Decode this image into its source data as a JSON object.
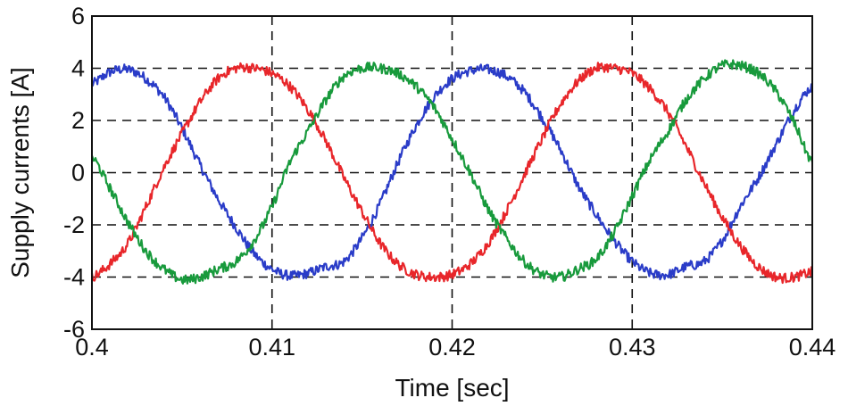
{
  "chart_data": {
    "type": "line",
    "title": "",
    "xlabel": "Time [sec]",
    "ylabel": "Supply currents [A]",
    "xlim": [
      0.4,
      0.44
    ],
    "ylim": [
      -6,
      6
    ],
    "xticks": [
      0.4,
      0.41,
      0.42,
      0.43,
      0.44
    ],
    "xtick_labels": [
      "0.4",
      "0.41",
      "0.42",
      "0.43",
      "0.44"
    ],
    "yticks": [
      -6,
      -4,
      -2,
      0,
      2,
      4,
      6
    ],
    "ytick_labels": [
      "-6",
      "-4",
      "-2",
      "0",
      "2",
      "4",
      "6"
    ],
    "grid": true,
    "grid_style": "dashed",
    "legend": false,
    "series": [
      {
        "color": "#2a3cc8",
        "x": [
          0.4,
          0.401,
          0.402,
          0.403,
          0.404,
          0.405,
          0.406,
          0.407,
          0.408,
          0.409,
          0.41,
          0.411,
          0.412,
          0.413,
          0.414,
          0.415,
          0.416,
          0.417,
          0.418,
          0.419,
          0.42,
          0.421,
          0.422,
          0.423,
          0.424,
          0.425,
          0.426,
          0.427,
          0.428,
          0.429,
          0.43,
          0.431,
          0.432,
          0.433,
          0.434,
          0.435,
          0.436,
          0.437,
          0.438,
          0.439,
          0.44
        ],
        "y": [
          3.4,
          3.85,
          3.95,
          3.6,
          2.9,
          1.7,
          0.3,
          -1.0,
          -2.1,
          -3.1,
          -3.7,
          -3.95,
          -3.85,
          -3.6,
          -3.4,
          -2.5,
          -1.2,
          0.4,
          1.8,
          2.9,
          3.6,
          3.9,
          3.95,
          3.7,
          3.1,
          2.1,
          0.9,
          -0.5,
          -1.6,
          -2.6,
          -3.4,
          -3.85,
          -3.9,
          -3.6,
          -3.4,
          -2.6,
          -1.3,
          -0.2,
          1.1,
          2.4,
          3.3
        ]
      },
      {
        "color": "#e8262a",
        "x": [
          0.4,
          0.401,
          0.402,
          0.403,
          0.404,
          0.405,
          0.406,
          0.407,
          0.408,
          0.409,
          0.41,
          0.411,
          0.412,
          0.413,
          0.414,
          0.415,
          0.416,
          0.417,
          0.418,
          0.419,
          0.42,
          0.421,
          0.422,
          0.423,
          0.424,
          0.425,
          0.426,
          0.427,
          0.428,
          0.429,
          0.43,
          0.431,
          0.432,
          0.433,
          0.434,
          0.435,
          0.436,
          0.437,
          0.438,
          0.439,
          0.44
        ],
        "y": [
          -4.0,
          -3.5,
          -2.7,
          -1.3,
          0.2,
          1.5,
          2.7,
          3.6,
          4.0,
          4.0,
          3.8,
          3.3,
          2.4,
          1.2,
          -0.2,
          -1.5,
          -2.7,
          -3.5,
          -3.9,
          -4.0,
          -3.9,
          -3.5,
          -2.7,
          -1.5,
          -0.1,
          1.3,
          2.6,
          3.5,
          4.0,
          4.0,
          3.8,
          3.2,
          2.3,
          1.0,
          -0.4,
          -1.7,
          -2.8,
          -3.6,
          -4.0,
          -4.0,
          -3.8
        ]
      },
      {
        "color": "#189a3c",
        "x": [
          0.4,
          0.401,
          0.402,
          0.403,
          0.404,
          0.405,
          0.406,
          0.407,
          0.408,
          0.409,
          0.41,
          0.411,
          0.412,
          0.413,
          0.414,
          0.415,
          0.416,
          0.417,
          0.418,
          0.419,
          0.42,
          0.421,
          0.422,
          0.423,
          0.424,
          0.425,
          0.426,
          0.427,
          0.428,
          0.429,
          0.43,
          0.431,
          0.432,
          0.433,
          0.434,
          0.435,
          0.436,
          0.437,
          0.438,
          0.439,
          0.44
        ],
        "y": [
          0.6,
          -0.6,
          -1.9,
          -3.0,
          -3.7,
          -4.1,
          -4.0,
          -3.7,
          -3.4,
          -2.6,
          -1.3,
          0.4,
          1.6,
          2.8,
          3.7,
          4.0,
          4.0,
          3.8,
          3.3,
          2.5,
          1.3,
          0.0,
          -1.4,
          -2.5,
          -3.4,
          -3.9,
          -4.0,
          -3.7,
          -3.3,
          -2.3,
          -0.9,
          0.5,
          1.6,
          2.8,
          3.6,
          4.1,
          4.1,
          3.8,
          3.1,
          1.9,
          0.4
        ]
      }
    ]
  }
}
